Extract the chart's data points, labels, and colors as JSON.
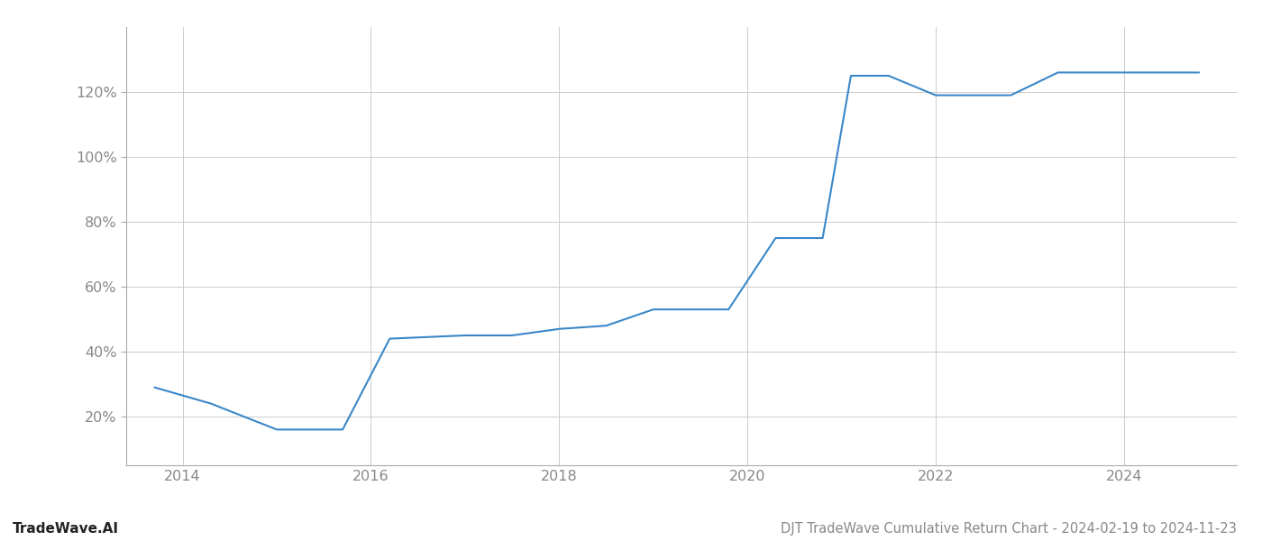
{
  "x_years": [
    2013.7,
    2014.3,
    2015.0,
    2015.7,
    2016.2,
    2017.0,
    2017.5,
    2018.0,
    2018.5,
    2019.0,
    2019.3,
    2019.8,
    2020.3,
    2020.8,
    2021.1,
    2021.5,
    2022.0,
    2022.3,
    2022.8,
    2023.3,
    2023.8,
    2024.3,
    2024.8
  ],
  "y_values": [
    29,
    24,
    16,
    16,
    44,
    45,
    45,
    47,
    48,
    53,
    53,
    53,
    75,
    75,
    125,
    125,
    119,
    119,
    119,
    126,
    126,
    126,
    126
  ],
  "line_color": "#3a87c8",
  "line_width": 1.5,
  "title": "DJT TradeWave Cumulative Return Chart - 2024-02-19 to 2024-11-23",
  "watermark": "TradeWave.AI",
  "xlim": [
    2013.4,
    2025.2
  ],
  "ylim": [
    5,
    140
  ],
  "yticks": [
    20,
    40,
    60,
    80,
    100,
    120
  ],
  "xticks": [
    2014,
    2016,
    2018,
    2020,
    2022,
    2024
  ],
  "grid_color": "#cccccc",
  "bg_color": "#ffffff",
  "tick_label_color": "#888888",
  "title_color": "#888888",
  "watermark_color": "#222222",
  "title_fontsize": 10.5,
  "watermark_fontsize": 11,
  "tick_fontsize": 11.5
}
